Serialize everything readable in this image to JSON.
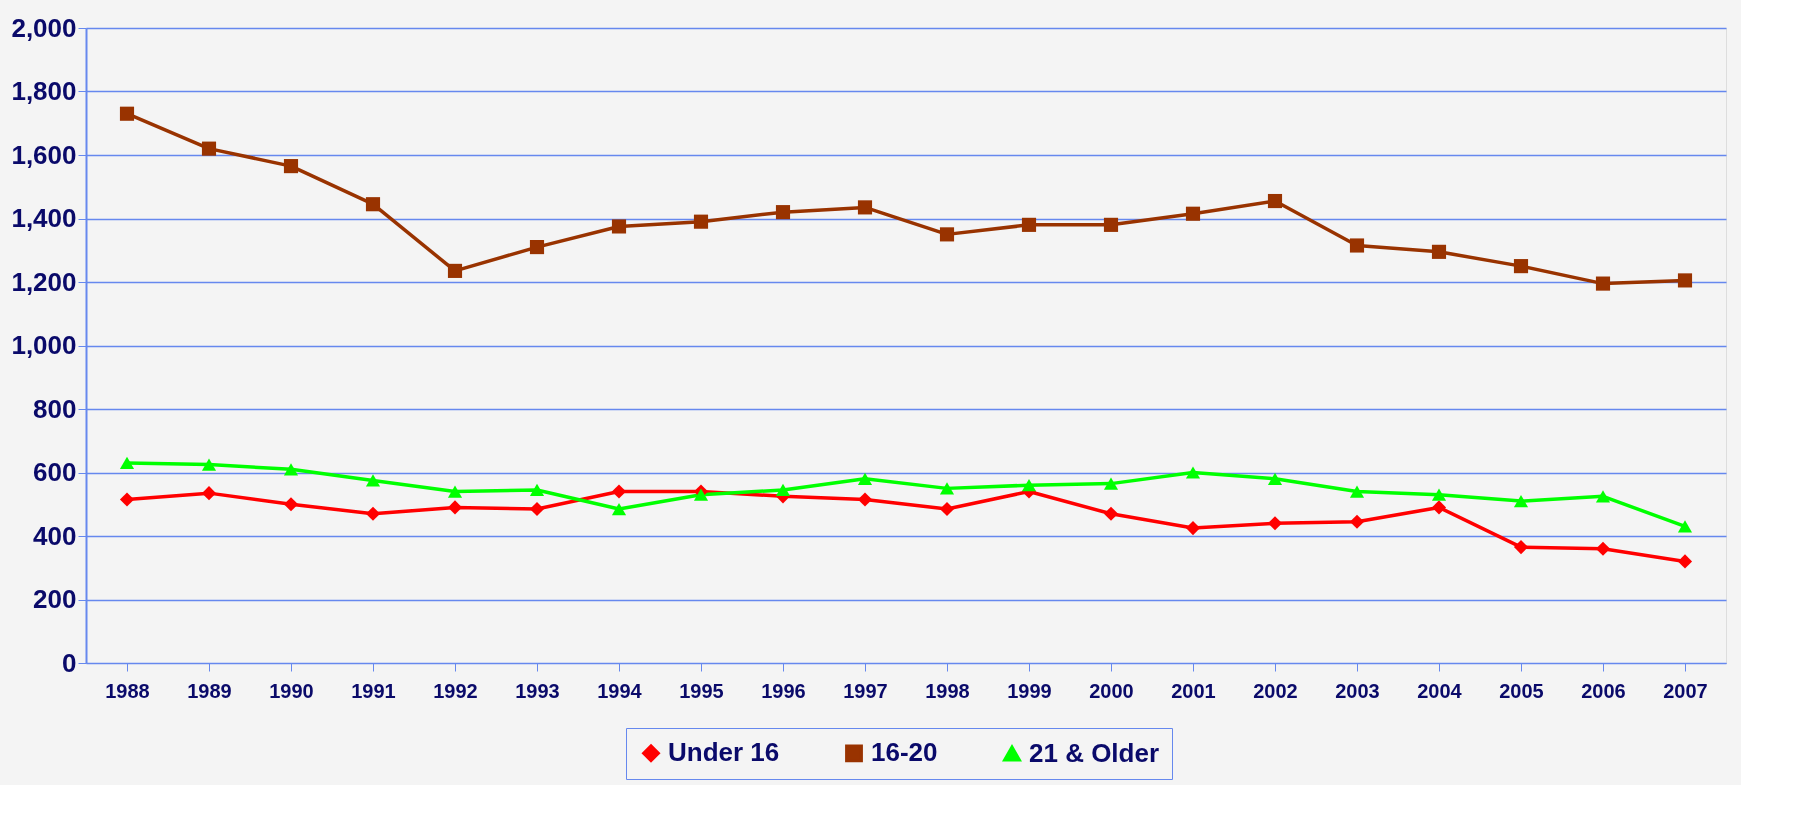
{
  "chart_data": {
    "type": "line",
    "categories": [
      "1988",
      "1989",
      "1990",
      "1991",
      "1992",
      "1993",
      "1994",
      "1995",
      "1996",
      "1997",
      "1998",
      "1999",
      "2000",
      "2001",
      "2002",
      "2003",
      "2004",
      "2005",
      "2006",
      "2007"
    ],
    "series": [
      {
        "name": "Under 16",
        "color": "#ff0000",
        "marker": "diamond",
        "values": [
          515,
          535,
          500,
          470,
          490,
          485,
          540,
          540,
          525,
          515,
          485,
          540,
          470,
          425,
          440,
          445,
          490,
          365,
          360,
          320
        ]
      },
      {
        "name": "16-20",
        "color": "#993300",
        "marker": "square",
        "values": [
          1730,
          1620,
          1565,
          1445,
          1235,
          1310,
          1375,
          1390,
          1420,
          1435,
          1350,
          1380,
          1380,
          1415,
          1455,
          1315,
          1295,
          1250,
          1195,
          1205
        ]
      },
      {
        "name": "21 & Older",
        "color": "#00ff00",
        "marker": "triangle",
        "values": [
          630,
          625,
          610,
          575,
          540,
          545,
          485,
          530,
          545,
          580,
          550,
          560,
          565,
          600,
          580,
          540,
          530,
          510,
          525,
          430
        ]
      }
    ],
    "ylim": [
      0,
      2000
    ],
    "yticks": [
      0,
      200,
      400,
      600,
      800,
      {
        "value": 1000,
        "label": "1,000"
      },
      {
        "value": 1200,
        "label": "1,200"
      },
      {
        "value": 1400,
        "label": "1,400"
      },
      {
        "value": 1600,
        "label": "1,600"
      },
      {
        "value": 1800,
        "label": "1,800"
      },
      {
        "value": 2000,
        "label": "2,000"
      }
    ],
    "grid": "y",
    "legend": "bottom"
  }
}
